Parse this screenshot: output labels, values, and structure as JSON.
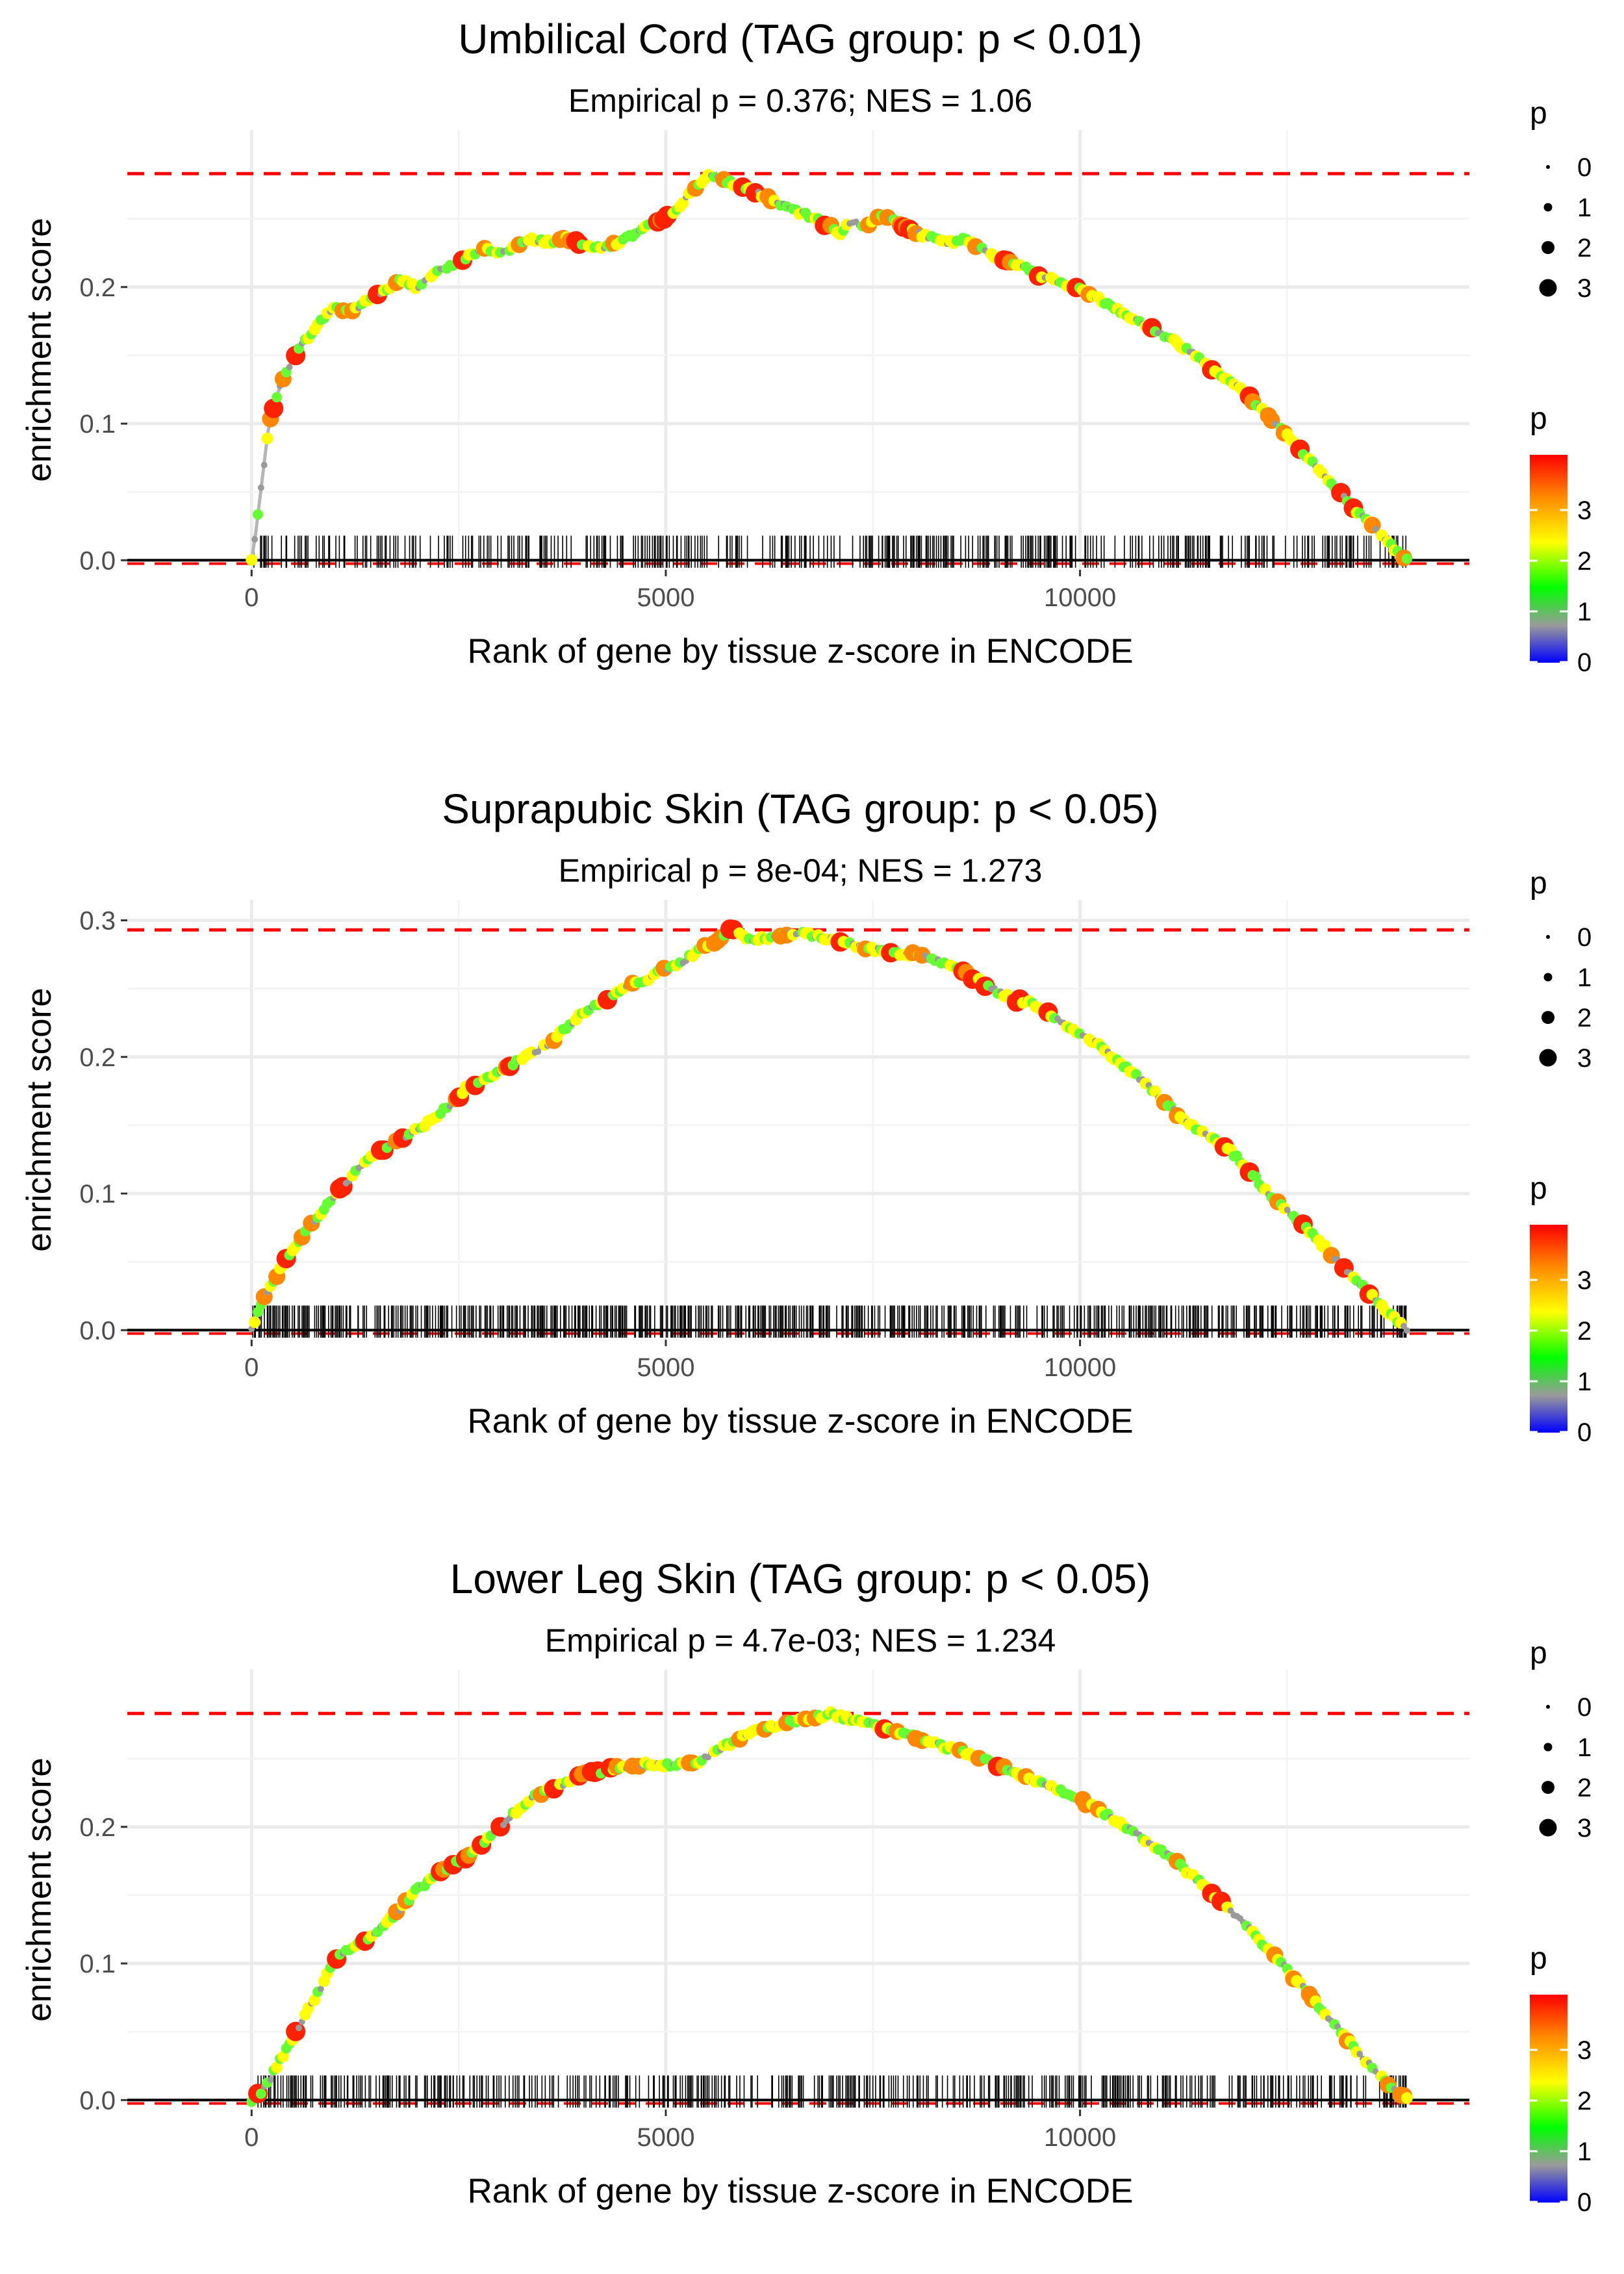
{
  "chart_data": [
    {
      "type": "line",
      "title": "Umbilical Cord (TAG group: p < 0.01)",
      "subtitle": "Empirical p = 0.376; NES = 1.06",
      "xlabel": "Rank of gene by tissue z-score in ENCODE",
      "ylabel": "enrichment score",
      "xlim": [
        -1500,
        14700
      ],
      "ylim": [
        -0.007,
        0.315
      ],
      "xticks": [
        0,
        5000,
        10000
      ],
      "xtick_labels": [
        "0",
        "5000",
        "10000"
      ],
      "yticks": [
        0.0,
        0.1,
        0.2
      ],
      "ytick_labels": [
        "0.0",
        "0.1",
        "0.2"
      ],
      "max_es": 0.283,
      "curve_x": [
        0,
        50,
        100,
        150,
        200,
        300,
        400,
        500,
        600,
        700,
        800,
        900,
        1000,
        1200,
        1400,
        1600,
        1800,
        2000,
        2200,
        2400,
        2600,
        2800,
        3000,
        3200,
        3400,
        3600,
        3800,
        4000,
        4200,
        4400,
        4600,
        4800,
        5000,
        5200,
        5400,
        5500,
        5600,
        5800,
        6000,
        6200,
        6400,
        6600,
        6800,
        7000,
        7100,
        7200,
        7400,
        7600,
        7800,
        8000,
        8200,
        8400,
        8600,
        8800,
        9000,
        9200,
        9400,
        9600,
        9800,
        10000,
        10200,
        10400,
        10600,
        10800,
        11000,
        11200,
        11400,
        11600,
        11800,
        12000,
        12200,
        12400,
        12600,
        12800,
        13000,
        13200,
        13400,
        13600,
        13800,
        13950
      ],
      "curve_y": [
        0.0,
        0.02,
        0.045,
        0.07,
        0.095,
        0.12,
        0.135,
        0.148,
        0.157,
        0.165,
        0.172,
        0.18,
        0.185,
        0.182,
        0.19,
        0.197,
        0.205,
        0.2,
        0.21,
        0.215,
        0.222,
        0.228,
        0.225,
        0.23,
        0.235,
        0.233,
        0.235,
        0.232,
        0.228,
        0.232,
        0.238,
        0.245,
        0.25,
        0.262,
        0.275,
        0.283,
        0.28,
        0.276,
        0.272,
        0.266,
        0.26,
        0.255,
        0.25,
        0.244,
        0.238,
        0.248,
        0.245,
        0.252,
        0.248,
        0.24,
        0.236,
        0.232,
        0.235,
        0.228,
        0.222,
        0.218,
        0.212,
        0.207,
        0.202,
        0.198,
        0.192,
        0.186,
        0.178,
        0.172,
        0.165,
        0.158,
        0.15,
        0.14,
        0.132,
        0.122,
        0.11,
        0.098,
        0.085,
        0.072,
        0.058,
        0.045,
        0.032,
        0.02,
        0.008,
        0.0
      ],
      "hit_density": 0.7,
      "size_legend": {
        "title": "p",
        "labels": [
          "0",
          "1",
          "2",
          "3"
        ]
      },
      "color_legend": {
        "title": "p",
        "labels": [
          "3",
          "2",
          "1",
          "0"
        ]
      }
    },
    {
      "type": "line",
      "title": "Suprapubic Skin (TAG group: p < 0.05)",
      "subtitle": "Empirical p = 8e-04; NES = 1.273",
      "xlabel": "Rank of gene by tissue z-score in ENCODE",
      "ylabel": "enrichment score",
      "xlim": [
        -1500,
        14700
      ],
      "ylim": [
        -0.007,
        0.315
      ],
      "xticks": [
        0,
        5000,
        10000
      ],
      "xtick_labels": [
        "0",
        "5000",
        "10000"
      ],
      "yticks": [
        0.0,
        0.1,
        0.2,
        0.3
      ],
      "ytick_labels": [
        "0.0",
        "0.1",
        "0.2",
        "0.3"
      ],
      "max_es": 0.293,
      "curve_x": [
        0,
        100,
        200,
        400,
        600,
        800,
        1000,
        1200,
        1400,
        1600,
        1800,
        2000,
        2200,
        2400,
        2600,
        2800,
        3000,
        3200,
        3400,
        3600,
        3800,
        4000,
        4200,
        4400,
        4600,
        4800,
        5000,
        5200,
        5400,
        5600,
        5800,
        6000,
        6200,
        6400,
        6600,
        6800,
        7000,
        7200,
        7400,
        7600,
        7800,
        8000,
        8200,
        8400,
        8600,
        8800,
        9000,
        9200,
        9400,
        9600,
        9800,
        10000,
        10200,
        10400,
        10600,
        10800,
        11000,
        11200,
        11400,
        11600,
        11800,
        12000,
        12200,
        12400,
        12600,
        12800,
        13000,
        13200,
        13400,
        13600,
        13800,
        13950
      ],
      "curve_y": [
        0.0,
        0.018,
        0.03,
        0.05,
        0.068,
        0.083,
        0.098,
        0.112,
        0.125,
        0.132,
        0.14,
        0.147,
        0.155,
        0.165,
        0.178,
        0.183,
        0.19,
        0.197,
        0.203,
        0.21,
        0.222,
        0.232,
        0.24,
        0.247,
        0.253,
        0.258,
        0.265,
        0.27,
        0.278,
        0.285,
        0.293,
        0.286,
        0.287,
        0.29,
        0.291,
        0.289,
        0.286,
        0.283,
        0.28,
        0.278,
        0.276,
        0.275,
        0.272,
        0.267,
        0.262,
        0.255,
        0.248,
        0.242,
        0.24,
        0.232,
        0.224,
        0.218,
        0.21,
        0.2,
        0.19,
        0.18,
        0.168,
        0.157,
        0.148,
        0.14,
        0.132,
        0.12,
        0.105,
        0.093,
        0.082,
        0.07,
        0.058,
        0.045,
        0.033,
        0.02,
        0.008,
        0.0
      ],
      "hit_density": 1.0,
      "size_legend": {
        "title": "p",
        "labels": [
          "0",
          "1",
          "2",
          "3"
        ]
      },
      "color_legend": {
        "title": "p",
        "labels": [
          "3",
          "2",
          "1",
          "0"
        ]
      }
    },
    {
      "type": "line",
      "title": "Lower Leg Skin (TAG group: p < 0.05)",
      "subtitle": "Empirical p = 4.7e-03; NES = 1.234",
      "xlabel": "Rank of gene by tissue z-score in ENCODE",
      "ylabel": "enrichment score",
      "xlim": [
        -1500,
        14700
      ],
      "ylim": [
        -0.007,
        0.315
      ],
      "xticks": [
        0,
        5000,
        10000
      ],
      "xtick_labels": [
        "0",
        "5000",
        "10000"
      ],
      "yticks": [
        0.0,
        0.1,
        0.2
      ],
      "ytick_labels": [
        "0.0",
        "0.1",
        "0.2"
      ],
      "max_es": 0.283,
      "curve_x": [
        0,
        100,
        200,
        300,
        400,
        500,
        600,
        700,
        800,
        900,
        1000,
        1200,
        1400,
        1600,
        1800,
        2000,
        2200,
        2400,
        2600,
        2800,
        3000,
        3200,
        3400,
        3600,
        3800,
        4000,
        4200,
        4400,
        4600,
        4800,
        5000,
        5200,
        5400,
        5600,
        5800,
        6000,
        6200,
        6400,
        6600,
        6800,
        7000,
        7200,
        7400,
        7600,
        7800,
        8000,
        8200,
        8400,
        8600,
        8800,
        9000,
        9200,
        9400,
        9600,
        9800,
        10000,
        10200,
        10400,
        10600,
        10800,
        11000,
        11200,
        11400,
        11600,
        11800,
        12000,
        12200,
        12400,
        12600,
        12800,
        13000,
        13200,
        13400,
        13600,
        13800,
        13950
      ],
      "curve_y": [
        0.0,
        0.005,
        0.012,
        0.025,
        0.035,
        0.045,
        0.058,
        0.068,
        0.078,
        0.09,
        0.102,
        0.112,
        0.118,
        0.128,
        0.14,
        0.155,
        0.162,
        0.172,
        0.178,
        0.188,
        0.2,
        0.212,
        0.222,
        0.228,
        0.232,
        0.238,
        0.24,
        0.243,
        0.245,
        0.246,
        0.245,
        0.246,
        0.248,
        0.255,
        0.262,
        0.268,
        0.272,
        0.275,
        0.278,
        0.28,
        0.283,
        0.279,
        0.276,
        0.273,
        0.27,
        0.266,
        0.262,
        0.258,
        0.254,
        0.25,
        0.245,
        0.24,
        0.235,
        0.23,
        0.226,
        0.22,
        0.213,
        0.206,
        0.198,
        0.19,
        0.182,
        0.172,
        0.162,
        0.15,
        0.14,
        0.128,
        0.115,
        0.102,
        0.088,
        0.075,
        0.06,
        0.046,
        0.032,
        0.019,
        0.008,
        0.0
      ],
      "hit_density": 0.8,
      "size_legend": {
        "title": "p",
        "labels": [
          "0",
          "1",
          "2",
          "3"
        ]
      },
      "color_legend": {
        "title": "p",
        "labels": [
          "3",
          "2",
          "1",
          "0"
        ]
      }
    }
  ],
  "colors": {
    "max_line": "#ff0000",
    "zero_line": "#000000",
    "grid": "#ebebeb",
    "curve": "#b5b5b5",
    "gradient": [
      "#0000ff",
      "#9a9a9a",
      "#00ff00",
      "#ffff00",
      "#ff8800",
      "#ff0000"
    ]
  }
}
